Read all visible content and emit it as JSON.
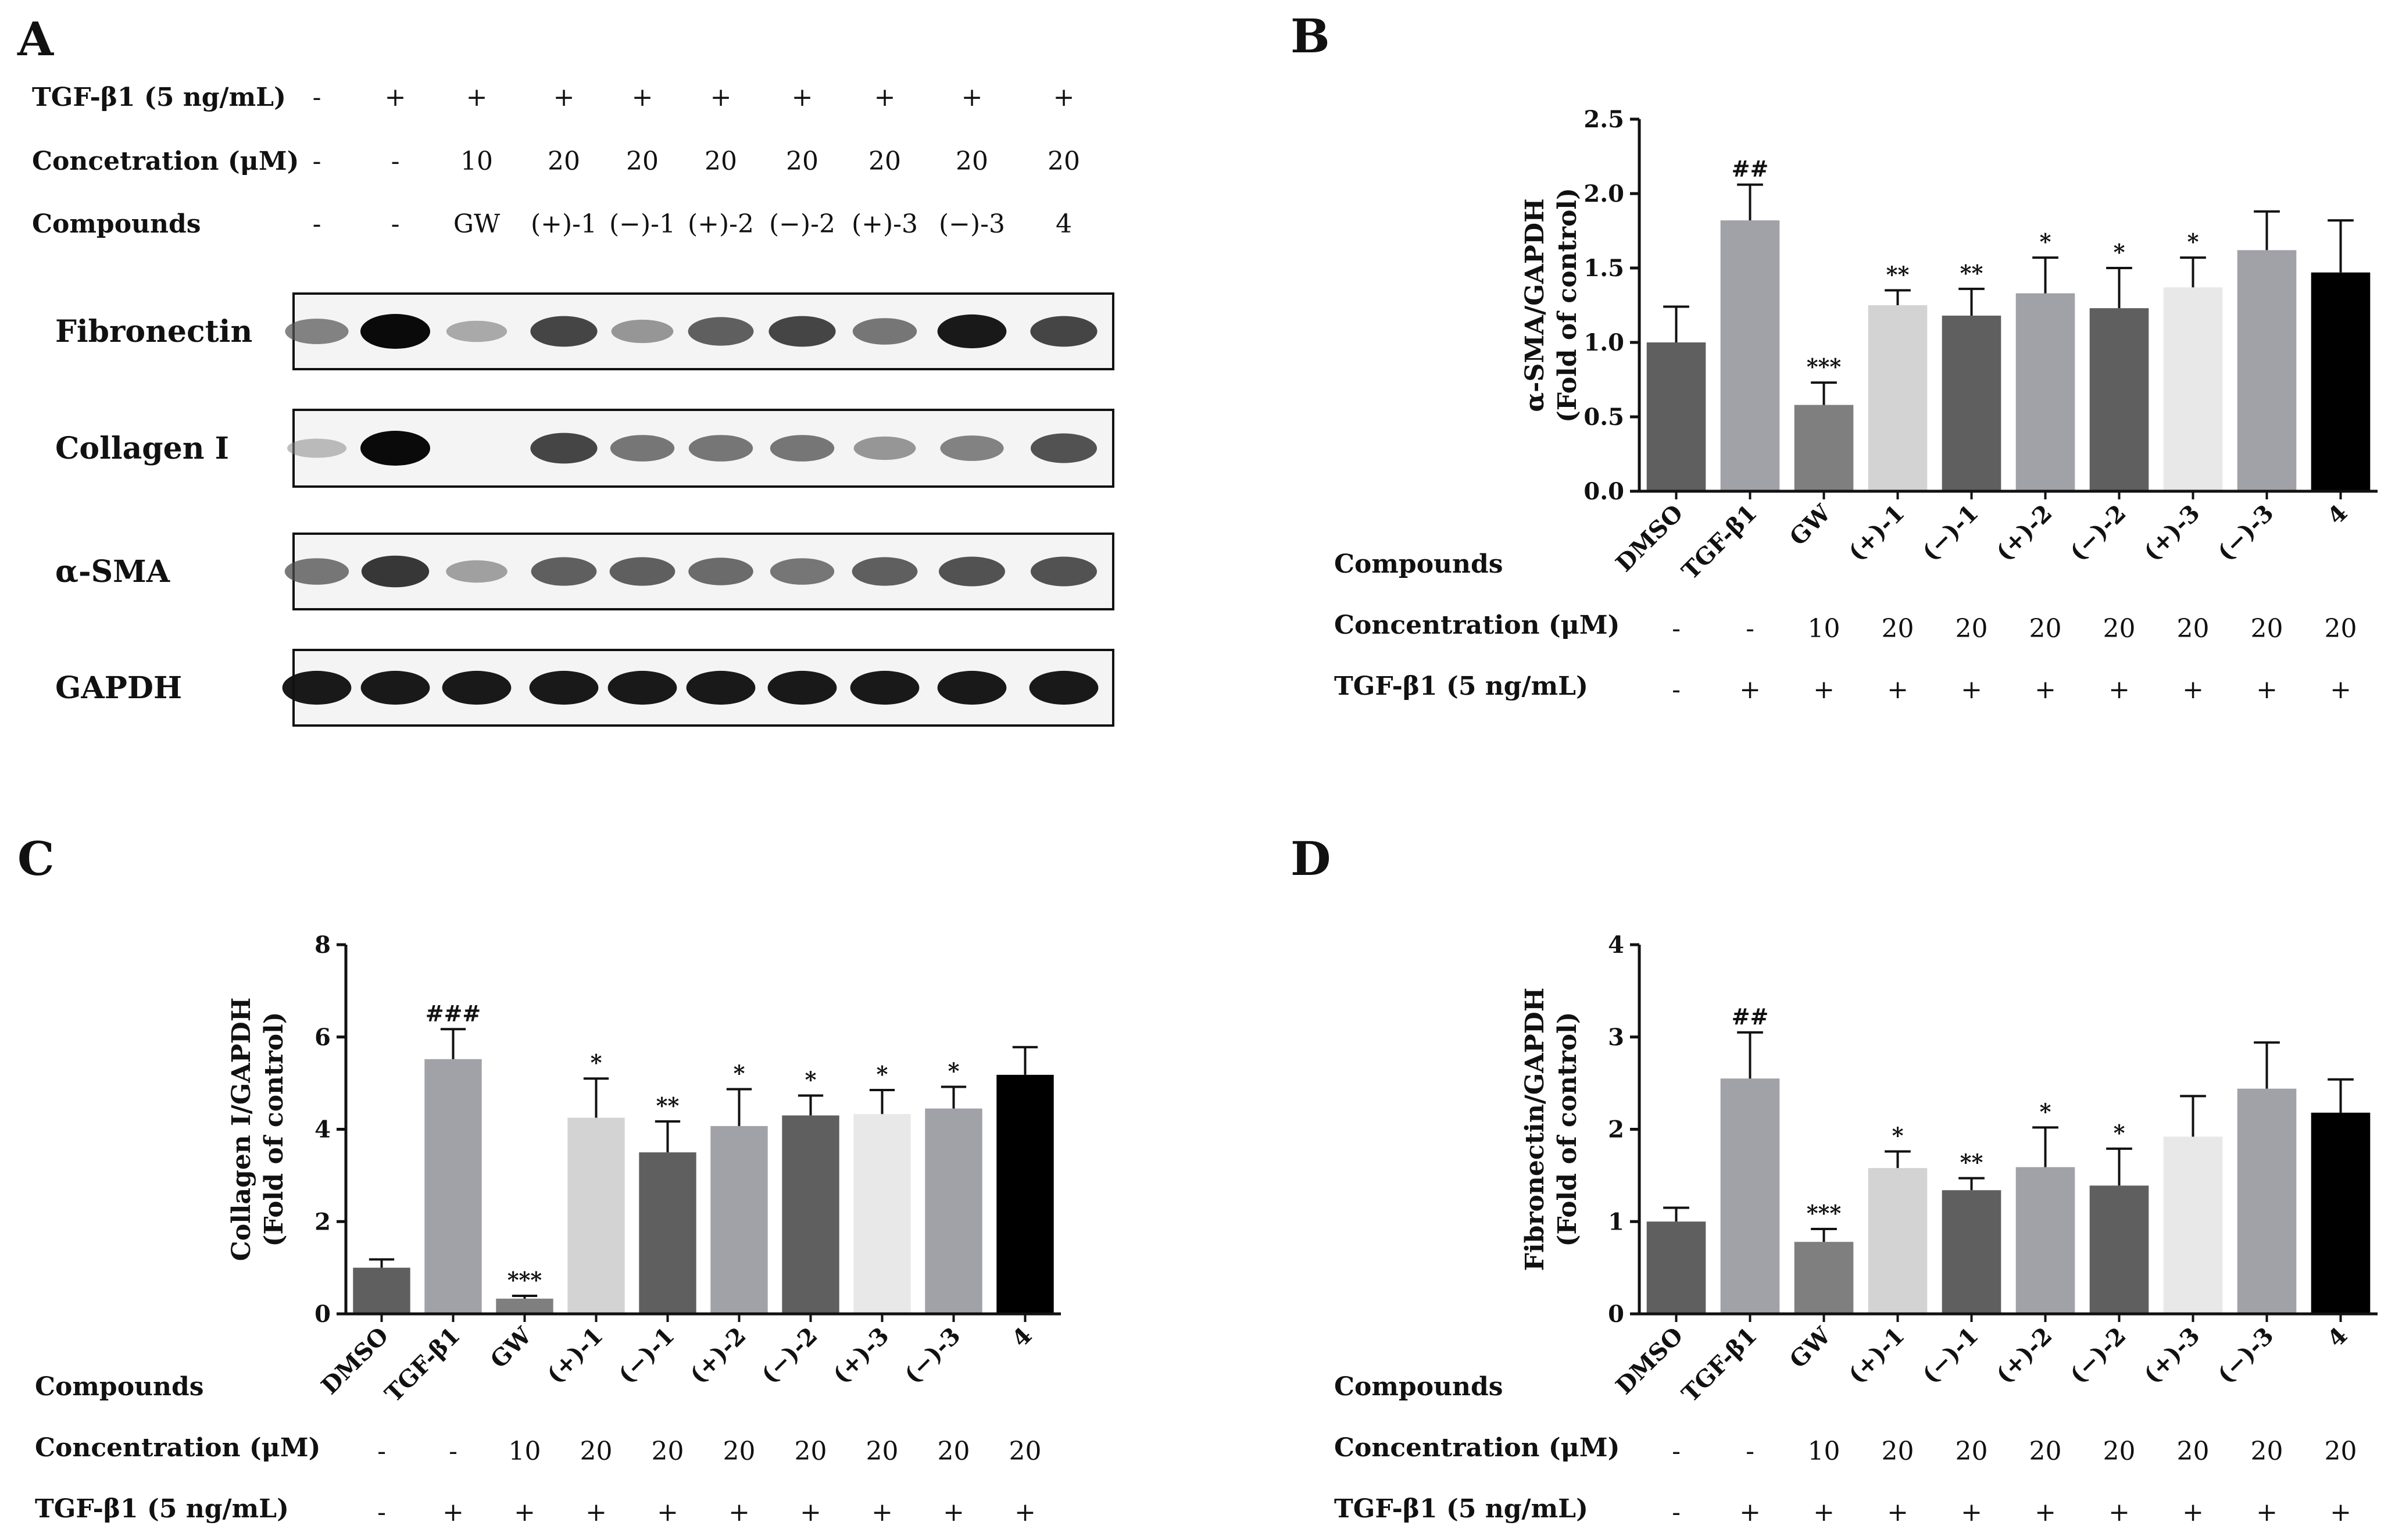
{
  "panel_letters": [
    "A",
    "B",
    "C",
    "D"
  ],
  "western_blot": {
    "header_rows": [
      {
        "label": "TGF-β1 (5 ng/mL)",
        "cells": [
          "-",
          "+",
          "+",
          "+",
          "+",
          "+",
          "+",
          "+",
          "+",
          "+"
        ]
      },
      {
        "label": "Concetration (μM)",
        "cells": [
          "-",
          "-",
          "10",
          "20",
          "20",
          "20",
          "20",
          "20",
          "20",
          "20"
        ]
      },
      {
        "label": "Compounds",
        "cells": [
          "-",
          "-",
          "GW",
          "(+)-1",
          "(−)-1",
          "(+)-2",
          "(−)-2",
          "(+)-3",
          "(−)-3",
          "4"
        ]
      }
    ],
    "blots": [
      {
        "label": "Fibronectin",
        "intensity": [
          0.55,
          1.0,
          0.35,
          0.8,
          0.45,
          0.7,
          0.8,
          0.6,
          0.95,
          0.8
        ]
      },
      {
        "label": "Collagen I",
        "intensity": [
          0.25,
          1.0,
          0.05,
          0.8,
          0.6,
          0.6,
          0.6,
          0.45,
          0.55,
          0.75
        ]
      },
      {
        "label": "α-SMA",
        "intensity": [
          0.6,
          0.85,
          0.4,
          0.7,
          0.7,
          0.65,
          0.6,
          0.7,
          0.75,
          0.75
        ]
      },
      {
        "label": "GAPDH",
        "intensity": [
          0.95,
          0.95,
          0.95,
          0.95,
          0.95,
          0.95,
          0.95,
          0.95,
          0.95,
          0.95
        ]
      }
    ]
  },
  "chart_data": [
    {
      "panel": "B",
      "type": "bar",
      "ylabel": [
        "α-SMA/GAPDH",
        "(Fold of control)"
      ],
      "ylim": [
        0,
        2.5
      ],
      "yticks": [
        "0.0",
        "0.5",
        "1.0",
        "1.5",
        "2.0",
        "2.5"
      ],
      "categories": [
        "DMSO",
        "TGF-β1",
        "GW",
        "(+)-1",
        "(−)-1",
        "(+)-2",
        "(−)-2",
        "(+)-3",
        "(−)-3",
        "4"
      ],
      "values": [
        1.0,
        1.82,
        0.58,
        1.25,
        1.18,
        1.33,
        1.23,
        1.37,
        1.62,
        1.47
      ],
      "errors": [
        0.24,
        0.24,
        0.15,
        0.1,
        0.18,
        0.24,
        0.27,
        0.2,
        0.26,
        0.35
      ],
      "annotations": [
        "",
        "##",
        "***",
        "**",
        "**",
        "*",
        "*",
        "*",
        "",
        ""
      ],
      "bar_colors": [
        "#5f5f5f",
        "#a1a1a8",
        "#7f7f7f",
        "#d3d3d3",
        "#5f5f5f",
        "#a1a1a8",
        "#5f5f5f",
        "#e8e8e8",
        "#a1a1a8",
        "#000000"
      ],
      "table_rows": [
        {
          "label": "Compounds",
          "cells": []
        },
        {
          "label": "Concentration (μM)",
          "cells": [
            "-",
            "-",
            "10",
            "20",
            "20",
            "20",
            "20",
            "20",
            "20",
            "20"
          ]
        },
        {
          "label": "TGF-β1 (5 ng/mL)",
          "cells": [
            "-",
            "+",
            "+",
            "+",
            "+",
            "+",
            "+",
            "+",
            "+",
            "+"
          ]
        }
      ]
    },
    {
      "panel": "C",
      "type": "bar",
      "ylabel": [
        "Collagen I/GAPDH",
        "(Fold of control)"
      ],
      "ylim": [
        0,
        8
      ],
      "yticks": [
        "0",
        "2",
        "4",
        "6",
        "8"
      ],
      "categories": [
        "DMSO",
        "TGF-β1",
        "GW",
        "(+)-1",
        "(−)-1",
        "(+)-2",
        "(−)-2",
        "(+)-3",
        "(−)-3",
        "4"
      ],
      "values": [
        1.0,
        5.52,
        0.33,
        4.25,
        3.5,
        4.07,
        4.3,
        4.33,
        4.45,
        5.18
      ],
      "errors": [
        0.18,
        0.65,
        0.06,
        0.85,
        0.67,
        0.8,
        0.43,
        0.52,
        0.47,
        0.6
      ],
      "annotations": [
        "",
        "###",
        "***",
        "*",
        "**",
        "*",
        "*",
        "*",
        "*",
        ""
      ],
      "bar_colors": [
        "#5f5f5f",
        "#a1a1a8",
        "#7f7f7f",
        "#d3d3d3",
        "#5f5f5f",
        "#a1a1a8",
        "#5f5f5f",
        "#e8e8e8",
        "#a1a1a8",
        "#000000"
      ],
      "table_rows": [
        {
          "label": "Compounds",
          "cells": []
        },
        {
          "label": "Concentration (μM)",
          "cells": [
            "-",
            "-",
            "10",
            "20",
            "20",
            "20",
            "20",
            "20",
            "20",
            "20"
          ]
        },
        {
          "label": "TGF-β1 (5 ng/mL)",
          "cells": [
            "-",
            "+",
            "+",
            "+",
            "+",
            "+",
            "+",
            "+",
            "+",
            "+"
          ]
        }
      ]
    },
    {
      "panel": "D",
      "type": "bar",
      "ylabel": [
        "Fibronectin/GAPDH",
        "(Fold of control)"
      ],
      "ylim": [
        0,
        4
      ],
      "yticks": [
        "0",
        "1",
        "2",
        "3",
        "4"
      ],
      "categories": [
        "DMSO",
        "TGF-β1",
        "GW",
        "(+)-1",
        "(−)-1",
        "(+)-2",
        "(−)-2",
        "(+)-3",
        "(−)-3",
        "4"
      ],
      "values": [
        1.0,
        2.55,
        0.78,
        1.58,
        1.34,
        1.59,
        1.39,
        1.92,
        2.44,
        2.18
      ],
      "errors": [
        0.15,
        0.5,
        0.14,
        0.18,
        0.13,
        0.43,
        0.4,
        0.44,
        0.5,
        0.36
      ],
      "annotations": [
        "",
        "##",
        "***",
        "*",
        "**",
        "*",
        "*",
        "",
        "",
        ""
      ],
      "bar_colors": [
        "#5f5f5f",
        "#a1a1a8",
        "#7f7f7f",
        "#d3d3d3",
        "#5f5f5f",
        "#a1a1a8",
        "#5f5f5f",
        "#e8e8e8",
        "#a1a1a8",
        "#000000"
      ],
      "table_rows": [
        {
          "label": "Compounds",
          "cells": []
        },
        {
          "label": "Concentration (μM)",
          "cells": [
            "-",
            "-",
            "10",
            "20",
            "20",
            "20",
            "20",
            "20",
            "20",
            "20"
          ]
        },
        {
          "label": "TGF-β1 (5 ng/mL)",
          "cells": [
            "-",
            "+",
            "+",
            "+",
            "+",
            "+",
            "+",
            "+",
            "+",
            "+"
          ]
        }
      ]
    }
  ]
}
